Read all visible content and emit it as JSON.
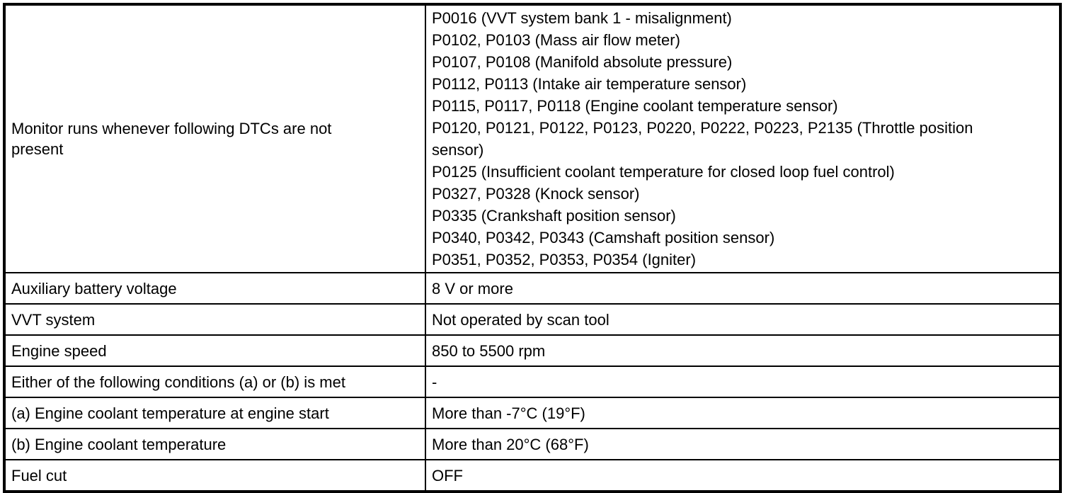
{
  "colors": {
    "text": "#000000",
    "border": "#000000",
    "background": "#ffffff"
  },
  "table": {
    "rows": [
      {
        "label": "Monitor runs whenever following DTCs are not present",
        "value_lines": [
          "P0016 (VVT system bank 1 - misalignment)",
          "P0102, P0103 (Mass air flow meter)",
          "P0107, P0108 (Manifold absolute pressure)",
          "P0112, P0113 (Intake air temperature sensor)",
          "P0115, P0117, P0118 (Engine coolant temperature sensor)",
          "P0120, P0121, P0122, P0123, P0220, P0222, P0223, P2135 (Throttle position sensor)",
          "P0125 (Insufficient coolant temperature for closed loop fuel control)",
          "P0327, P0328 (Knock sensor)",
          "P0335 (Crankshaft position sensor)",
          "P0340, P0342, P0343 (Camshaft position sensor)",
          "P0351, P0352, P0353, P0354 (Igniter)"
        ]
      },
      {
        "label": "Auxiliary battery voltage",
        "value": "8 V or more"
      },
      {
        "label": "VVT system",
        "value": "Not operated by scan tool"
      },
      {
        "label": "Engine speed",
        "value": "850 to 5500 rpm"
      },
      {
        "label": "Either of the following conditions (a) or (b) is met",
        "value": "-"
      },
      {
        "label": "(a) Engine coolant temperature at engine start",
        "value": "More than -7°C (19°F)"
      },
      {
        "label": "(b) Engine coolant temperature",
        "value": "More than 20°C (68°F)"
      },
      {
        "label": "Fuel cut",
        "value": "OFF"
      }
    ]
  }
}
